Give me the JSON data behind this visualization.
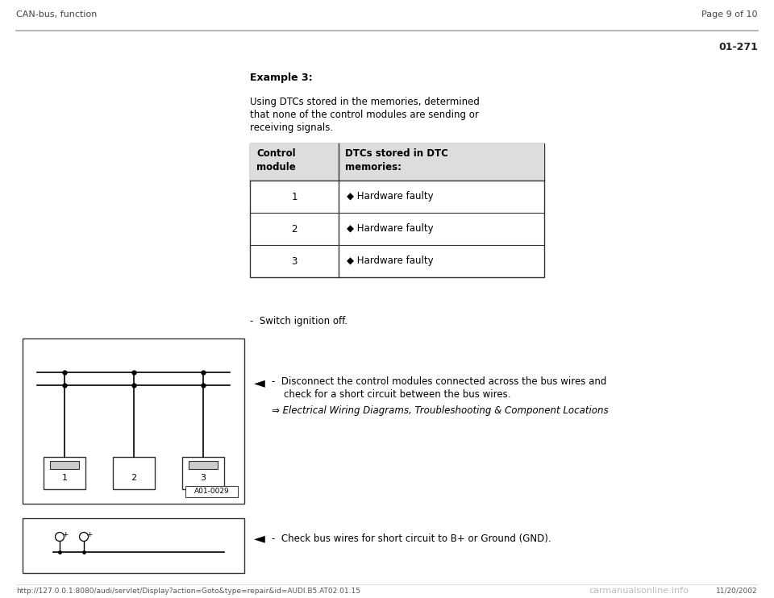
{
  "bg_color": "#ffffff",
  "header_left": "CAN-bus, function",
  "header_right": "Page 9 of 10",
  "page_number": "01-271",
  "example_title": "Example 3:",
  "intro_text_lines": [
    "Using DTCs stored in the memories, determined",
    "that none of the control modules are sending or",
    "receiving signals."
  ],
  "table_col1_header": "Control\nmodule",
  "table_col2_header": "DTCs stored in DTC\nmemories:",
  "table_rows": [
    [
      "1",
      "◆ Hardware faulty"
    ],
    [
      "2",
      "◆ Hardware faulty"
    ],
    [
      "3",
      "◆ Hardware faulty"
    ]
  ],
  "bullet_text1": "-  Switch ignition off.",
  "diagram1_label": "A01-0029",
  "diagram1_modules": [
    "1",
    "2",
    "3"
  ],
  "arrow_symbol": "◄",
  "instruction1_lines": [
    "-  Disconnect the control modules connected across the bus wires and",
    "    check for a short circuit between the bus wires."
  ],
  "instruction1_italic": "⇒ Electrical Wiring Diagrams, Troubleshooting & Component Locations",
  "instruction2": "-  Check bus wires for short circuit to B+ or Ground (GND).",
  "footer_url": "http://127.0.0.1:8080/audi/servlet/Display?action=Goto&type=repair&id=AUDI.B5.AT02.01.15",
  "footer_right": "11/20/2002",
  "footer_watermark": "carmanualsonline.info"
}
